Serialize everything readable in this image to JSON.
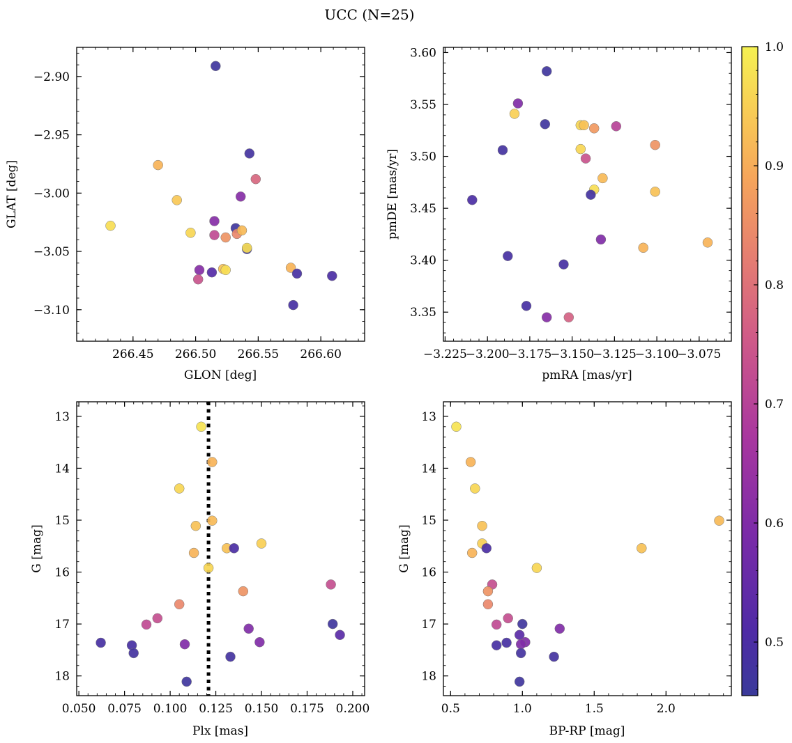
{
  "figure": {
    "title": "UCC (N=25)"
  },
  "colorbar": {
    "cmap": "plasma",
    "range": [
      0.455,
      1.0
    ],
    "ticks": [
      0.5,
      0.6,
      0.7,
      0.8,
      0.9,
      1.0
    ],
    "tick_labels": [
      "0.5",
      "0.6",
      "0.7",
      "0.8",
      "0.9",
      "1.0"
    ]
  },
  "chart_data": [
    {
      "type": "scatter",
      "xlabel": "GLON [deg]",
      "ylabel": "GLAT [deg]",
      "xlim": [
        266.405,
        266.635
      ],
      "ylim": [
        -3.127,
        -2.875
      ],
      "y_inverted": false,
      "xticks": [
        266.45,
        266.5,
        266.55,
        266.6
      ],
      "xtick_labels": [
        "266.45",
        "266.50",
        "266.55",
        "266.60"
      ],
      "yticks": [
        -2.9,
        -2.95,
        -3.0,
        -3.05,
        -3.1
      ],
      "ytick_labels": [
        "−2.90",
        "−2.95",
        "−3.00",
        "−3.05",
        "−3.10"
      ],
      "points": [
        {
          "x": 266.516,
          "y": -2.891,
          "c": 0.47
        },
        {
          "x": 266.543,
          "y": -2.966,
          "c": 0.48
        },
        {
          "x": 266.47,
          "y": -2.976,
          "c": 0.91
        },
        {
          "x": 266.548,
          "y": -2.988,
          "c": 0.78
        },
        {
          "x": 266.536,
          "y": -3.003,
          "c": 0.61
        },
        {
          "x": 266.485,
          "y": -3.006,
          "c": 0.94
        },
        {
          "x": 266.432,
          "y": -3.028,
          "c": 0.97
        },
        {
          "x": 266.515,
          "y": -3.024,
          "c": 0.61
        },
        {
          "x": 266.532,
          "y": -3.03,
          "c": 0.47
        },
        {
          "x": 266.496,
          "y": -3.034,
          "c": 0.96
        },
        {
          "x": 266.515,
          "y": -3.036,
          "c": 0.72
        },
        {
          "x": 266.524,
          "y": -3.038,
          "c": 0.86
        },
        {
          "x": 266.533,
          "y": -3.035,
          "c": 0.84
        },
        {
          "x": 266.537,
          "y": -3.032,
          "c": 0.92
        },
        {
          "x": 266.541,
          "y": -3.048,
          "c": 0.47
        },
        {
          "x": 266.541,
          "y": -3.047,
          "c": 0.97
        },
        {
          "x": 266.576,
          "y": -3.064,
          "c": 0.91
        },
        {
          "x": 266.581,
          "y": -3.069,
          "c": 0.49
        },
        {
          "x": 266.503,
          "y": -3.066,
          "c": 0.61
        },
        {
          "x": 266.513,
          "y": -3.068,
          "c": 0.52
        },
        {
          "x": 266.522,
          "y": -3.065,
          "c": 0.93
        },
        {
          "x": 266.524,
          "y": -3.066,
          "c": 0.97
        },
        {
          "x": 266.502,
          "y": -3.074,
          "c": 0.74
        },
        {
          "x": 266.578,
          "y": -3.096,
          "c": 0.49
        },
        {
          "x": 266.609,
          "y": -3.071,
          "c": 0.5
        }
      ]
    },
    {
      "type": "scatter",
      "xlabel": "pmRA [mas/yr]",
      "ylabel": "pmDE [mas/yr]",
      "xlim": [
        -3.226,
        -3.056
      ],
      "ylim": [
        3.322,
        3.605
      ],
      "y_inverted": false,
      "xticks": [
        -3.225,
        -3.2,
        -3.175,
        -3.15,
        -3.125,
        -3.1,
        -3.075
      ],
      "xtick_labels": [
        "−3.225",
        "−3.200",
        "−3.175",
        "−3.150",
        "−3.125",
        "−3.100",
        "−3.075"
      ],
      "yticks": [
        3.35,
        3.4,
        3.45,
        3.5,
        3.55,
        3.6
      ],
      "ytick_labels": [
        "3.35",
        "3.40",
        "3.45",
        "3.50",
        "3.55",
        "3.60"
      ],
      "points": [
        {
          "x": -3.165,
          "y": 3.582,
          "c": 0.47
        },
        {
          "x": -3.182,
          "y": 3.551,
          "c": 0.6
        },
        {
          "x": -3.184,
          "y": 3.541,
          "c": 0.95
        },
        {
          "x": -3.166,
          "y": 3.531,
          "c": 0.47
        },
        {
          "x": -3.145,
          "y": 3.53,
          "c": 0.96
        },
        {
          "x": -3.143,
          "y": 3.53,
          "c": 0.93
        },
        {
          "x": -3.137,
          "y": 3.527,
          "c": 0.87
        },
        {
          "x": -3.124,
          "y": 3.529,
          "c": 0.7
        },
        {
          "x": -3.191,
          "y": 3.506,
          "c": 0.48
        },
        {
          "x": -3.145,
          "y": 3.507,
          "c": 0.96
        },
        {
          "x": -3.142,
          "y": 3.498,
          "c": 0.74
        },
        {
          "x": -3.101,
          "y": 3.511,
          "c": 0.86
        },
        {
          "x": -3.132,
          "y": 3.479,
          "c": 0.92
        },
        {
          "x": -3.137,
          "y": 3.468,
          "c": 0.97
        },
        {
          "x": -3.139,
          "y": 3.463,
          "c": 0.48
        },
        {
          "x": -3.101,
          "y": 3.466,
          "c": 0.93
        },
        {
          "x": -3.209,
          "y": 3.458,
          "c": 0.5
        },
        {
          "x": -3.133,
          "y": 3.42,
          "c": 0.6
        },
        {
          "x": -3.108,
          "y": 3.412,
          "c": 0.91
        },
        {
          "x": -3.07,
          "y": 3.417,
          "c": 0.91
        },
        {
          "x": -3.188,
          "y": 3.404,
          "c": 0.49
        },
        {
          "x": -3.155,
          "y": 3.396,
          "c": 0.49
        },
        {
          "x": -3.177,
          "y": 3.356,
          "c": 0.49
        },
        {
          "x": -3.165,
          "y": 3.345,
          "c": 0.61
        },
        {
          "x": -3.152,
          "y": 3.345,
          "c": 0.77
        }
      ]
    },
    {
      "type": "scatter",
      "xlabel": "Plx [mas]",
      "ylabel": "G [mag]",
      "xlim": [
        0.0488,
        0.2065
      ],
      "ylim": [
        18.38,
        12.72
      ],
      "y_inverted": true,
      "xticks": [
        0.05,
        0.075,
        0.1,
        0.125,
        0.15,
        0.175,
        0.2
      ],
      "xtick_labels": [
        "0.050",
        "0.075",
        "0.100",
        "0.125",
        "0.150",
        "0.175",
        "0.200"
      ],
      "yticks": [
        13,
        14,
        15,
        16,
        17,
        18
      ],
      "ytick_labels": [
        "13",
        "14",
        "15",
        "16",
        "17",
        "18"
      ],
      "vline": {
        "x": 0.121,
        "style": "dotted"
      },
      "points": [
        {
          "x": 0.117,
          "y": 13.2,
          "c": 0.98
        },
        {
          "x": 0.123,
          "y": 13.88,
          "c": 0.91
        },
        {
          "x": 0.105,
          "y": 14.39,
          "c": 0.96
        },
        {
          "x": 0.123,
          "y": 15.01,
          "c": 0.92
        },
        {
          "x": 0.114,
          "y": 15.11,
          "c": 0.93
        },
        {
          "x": 0.15,
          "y": 15.45,
          "c": 0.95
        },
        {
          "x": 0.131,
          "y": 15.54,
          "c": 0.93
        },
        {
          "x": 0.135,
          "y": 15.54,
          "c": 0.5
        },
        {
          "x": 0.113,
          "y": 15.63,
          "c": 0.91
        },
        {
          "x": 0.121,
          "y": 15.92,
          "c": 0.96
        },
        {
          "x": 0.188,
          "y": 16.24,
          "c": 0.73
        },
        {
          "x": 0.14,
          "y": 16.37,
          "c": 0.86
        },
        {
          "x": 0.105,
          "y": 16.62,
          "c": 0.84
        },
        {
          "x": 0.093,
          "y": 16.89,
          "c": 0.73
        },
        {
          "x": 0.087,
          "y": 17.01,
          "c": 0.72
        },
        {
          "x": 0.189,
          "y": 17.0,
          "c": 0.47
        },
        {
          "x": 0.143,
          "y": 17.09,
          "c": 0.6
        },
        {
          "x": 0.193,
          "y": 17.21,
          "c": 0.53
        },
        {
          "x": 0.149,
          "y": 17.35,
          "c": 0.6
        },
        {
          "x": 0.062,
          "y": 17.36,
          "c": 0.49
        },
        {
          "x": 0.108,
          "y": 17.39,
          "c": 0.6
        },
        {
          "x": 0.079,
          "y": 17.41,
          "c": 0.49
        },
        {
          "x": 0.08,
          "y": 17.56,
          "c": 0.48
        },
        {
          "x": 0.133,
          "y": 17.63,
          "c": 0.48
        },
        {
          "x": 0.109,
          "y": 18.11,
          "c": 0.47
        }
      ]
    },
    {
      "type": "scatter",
      "xlabel": "BP-RP [mag]",
      "ylabel": "G [mag]",
      "xlim": [
        0.45,
        2.455
      ],
      "ylim": [
        18.38,
        12.72
      ],
      "y_inverted": true,
      "xticks": [
        0.5,
        1.0,
        1.5,
        2.0
      ],
      "xtick_labels": [
        "0.5",
        "1.0",
        "1.5",
        "2.0"
      ],
      "yticks": [
        13,
        14,
        15,
        16,
        17,
        18
      ],
      "ytick_labels": [
        "13",
        "14",
        "15",
        "16",
        "17",
        "18"
      ],
      "points": [
        {
          "x": 0.54,
          "y": 13.2,
          "c": 0.98
        },
        {
          "x": 0.64,
          "y": 13.88,
          "c": 0.91
        },
        {
          "x": 0.67,
          "y": 14.39,
          "c": 0.96
        },
        {
          "x": 2.37,
          "y": 15.01,
          "c": 0.92
        },
        {
          "x": 0.72,
          "y": 15.11,
          "c": 0.93
        },
        {
          "x": 0.72,
          "y": 15.45,
          "c": 0.95
        },
        {
          "x": 1.83,
          "y": 15.54,
          "c": 0.93
        },
        {
          "x": 0.75,
          "y": 15.54,
          "c": 0.5
        },
        {
          "x": 0.65,
          "y": 15.63,
          "c": 0.91
        },
        {
          "x": 1.1,
          "y": 15.92,
          "c": 0.96
        },
        {
          "x": 0.79,
          "y": 16.24,
          "c": 0.73
        },
        {
          "x": 0.76,
          "y": 16.37,
          "c": 0.86
        },
        {
          "x": 0.76,
          "y": 16.62,
          "c": 0.84
        },
        {
          "x": 0.9,
          "y": 16.89,
          "c": 0.73
        },
        {
          "x": 0.82,
          "y": 17.01,
          "c": 0.72
        },
        {
          "x": 1.0,
          "y": 17.0,
          "c": 0.47
        },
        {
          "x": 1.26,
          "y": 17.09,
          "c": 0.6
        },
        {
          "x": 0.98,
          "y": 17.21,
          "c": 0.53
        },
        {
          "x": 1.02,
          "y": 17.35,
          "c": 0.6
        },
        {
          "x": 0.89,
          "y": 17.36,
          "c": 0.49
        },
        {
          "x": 0.99,
          "y": 17.39,
          "c": 0.6
        },
        {
          "x": 0.82,
          "y": 17.41,
          "c": 0.49
        },
        {
          "x": 0.99,
          "y": 17.56,
          "c": 0.48
        },
        {
          "x": 1.22,
          "y": 17.63,
          "c": 0.48
        },
        {
          "x": 0.98,
          "y": 18.11,
          "c": 0.47
        }
      ]
    }
  ]
}
